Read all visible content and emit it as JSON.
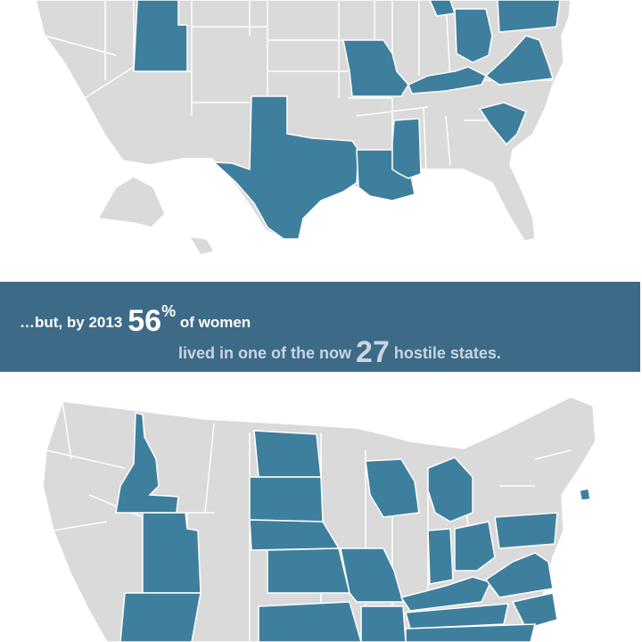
{
  "banner": {
    "lead": "…but, by 2013",
    "figure_women": "56",
    "percent_sign": "%",
    "of_women": "of women",
    "lived_text": "lived in one of the now",
    "figure_states": "27",
    "hostile_text": "hostile states."
  },
  "colors": {
    "hostile": "#3f7f9e",
    "other": "#dadada",
    "banner": "#3d6a87",
    "border": "#ffffff"
  }
}
